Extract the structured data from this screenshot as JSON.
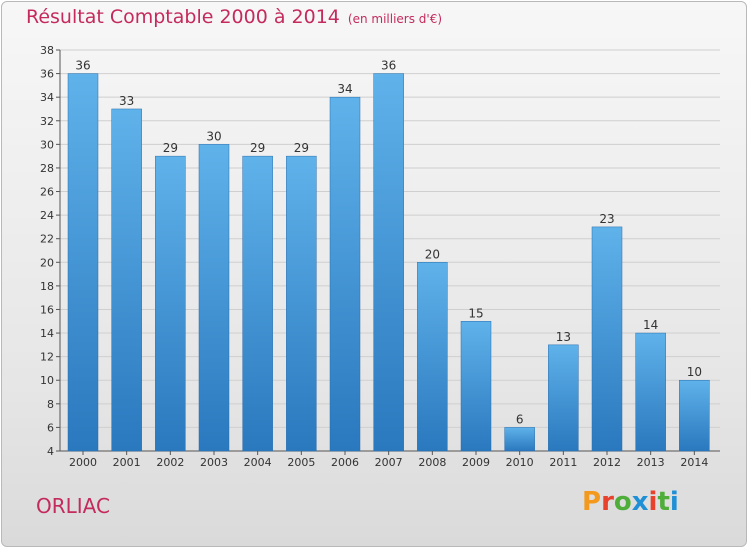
{
  "title": {
    "main": "Résultat Comptable 2000 à 2014",
    "unit": "(en milliers d'€)"
  },
  "location": "ORLIAC",
  "logo": {
    "letters": [
      "P",
      "r",
      "o",
      "x",
      "i",
      "t",
      "i"
    ],
    "colors": [
      "#f39a1e",
      "#e8422c",
      "#4fae3a",
      "#1f8fd6",
      "#e8422c",
      "#4fae3a",
      "#1f8fd6"
    ]
  },
  "colors": {
    "bar_light": "#5aaee8",
    "bar_dark": "#2a78be",
    "accent": "#c42a5c"
  },
  "chart_data": {
    "type": "bar",
    "categories": [
      "2000",
      "2001",
      "2002",
      "2003",
      "2004",
      "2005",
      "2006",
      "2007",
      "2008",
      "2009",
      "2010",
      "2011",
      "2012",
      "2013",
      "2014"
    ],
    "values": [
      36,
      33,
      29,
      30,
      29,
      29,
      34,
      36,
      20,
      15,
      6,
      13,
      23,
      14,
      10
    ],
    "ylim": [
      4,
      38
    ],
    "yticks": [
      4,
      6,
      8,
      10,
      12,
      14,
      16,
      18,
      20,
      22,
      24,
      26,
      28,
      30,
      32,
      34,
      36,
      38
    ],
    "grid": true,
    "data_labels": true
  }
}
